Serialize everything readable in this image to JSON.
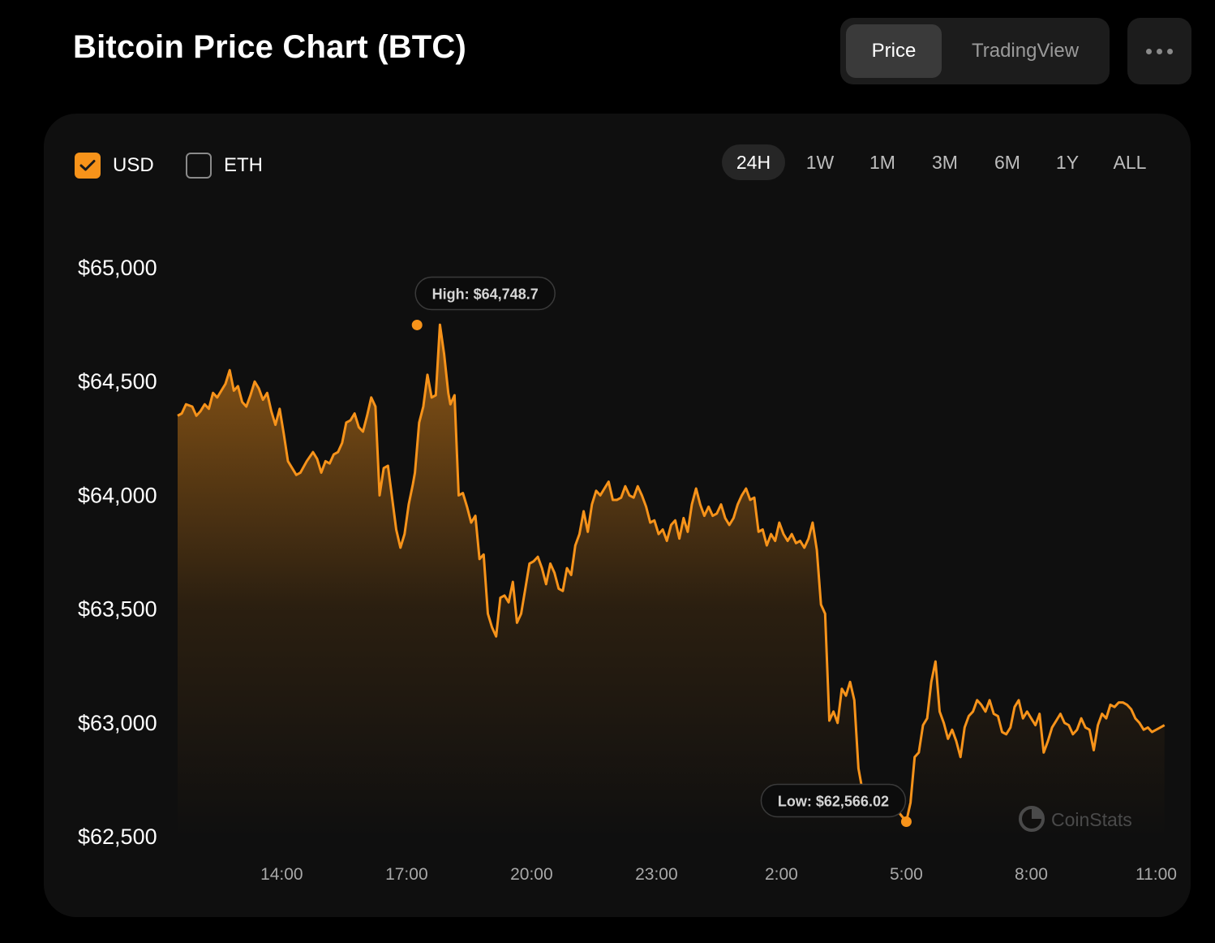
{
  "header": {
    "title": "Bitcoin Price Chart (BTC)",
    "view_tabs": [
      {
        "label": "Price",
        "active": true
      },
      {
        "label": "TradingView",
        "active": false
      }
    ],
    "more_icon": "more-horizontal-icon"
  },
  "currency_options": [
    {
      "label": "USD",
      "checked": true
    },
    {
      "label": "ETH",
      "checked": false
    }
  ],
  "range_tabs": [
    {
      "label": "24H",
      "active": true
    },
    {
      "label": "1W",
      "active": false
    },
    {
      "label": "1M",
      "active": false
    },
    {
      "label": "3M",
      "active": false
    },
    {
      "label": "6M",
      "active": false
    },
    {
      "label": "1Y",
      "active": false
    },
    {
      "label": "ALL",
      "active": false
    }
  ],
  "watermark": "CoinStats",
  "colors": {
    "accent": "#f7931a",
    "background": "#000000",
    "card": "#0f0f0f"
  },
  "chart_data": {
    "type": "area",
    "title": "",
    "xlabel": "",
    "ylabel": "",
    "ylim": [
      62500,
      65000
    ],
    "y_ticks": [
      65000,
      64500,
      64000,
      63500,
      63000,
      62500
    ],
    "y_tick_labels": [
      "$65,000",
      "$64,500",
      "$64,000",
      "$63,500",
      "$63,000",
      "$62,500"
    ],
    "x_range": [
      11.5,
      35.4
    ],
    "x_ticks": [
      14,
      17,
      20,
      23,
      26,
      29,
      32,
      35
    ],
    "x_tick_labels": [
      "14:00",
      "17:00",
      "20:00",
      "23:00",
      "2:00",
      "5:00",
      "8:00",
      "11:00"
    ],
    "high": {
      "label": "High: $64,748.7",
      "x": 17.25,
      "value": 64748.7
    },
    "low": {
      "label": "Low: $62,566.02",
      "x": 29.0,
      "value": 62566.02
    },
    "series": [
      {
        "color": "#f7931a",
        "points": [
          [
            11.5,
            64350
          ],
          [
            11.6,
            64360
          ],
          [
            11.7,
            64400
          ],
          [
            11.85,
            64390
          ],
          [
            11.95,
            64350
          ],
          [
            12.05,
            64370
          ],
          [
            12.15,
            64400
          ],
          [
            12.25,
            64380
          ],
          [
            12.35,
            64450
          ],
          [
            12.45,
            64430
          ],
          [
            12.55,
            64460
          ],
          [
            12.65,
            64490
          ],
          [
            12.75,
            64550
          ],
          [
            12.85,
            64460
          ],
          [
            12.95,
            64480
          ],
          [
            13.05,
            64410
          ],
          [
            13.15,
            64390
          ],
          [
            13.25,
            64440
          ],
          [
            13.35,
            64500
          ],
          [
            13.45,
            64470
          ],
          [
            13.55,
            64420
          ],
          [
            13.65,
            64450
          ],
          [
            13.75,
            64370
          ],
          [
            13.85,
            64310
          ],
          [
            13.95,
            64380
          ],
          [
            14.05,
            64270
          ],
          [
            14.15,
            64150
          ],
          [
            14.25,
            64120
          ],
          [
            14.35,
            64090
          ],
          [
            14.45,
            64100
          ],
          [
            14.6,
            64150
          ],
          [
            14.75,
            64190
          ],
          [
            14.85,
            64160
          ],
          [
            14.95,
            64100
          ],
          [
            15.05,
            64150
          ],
          [
            15.15,
            64140
          ],
          [
            15.25,
            64180
          ],
          [
            15.35,
            64190
          ],
          [
            15.45,
            64230
          ],
          [
            15.55,
            64320
          ],
          [
            15.65,
            64330
          ],
          [
            15.75,
            64360
          ],
          [
            15.85,
            64300
          ],
          [
            15.95,
            64280
          ],
          [
            16.05,
            64350
          ],
          [
            16.15,
            64430
          ],
          [
            16.25,
            64390
          ],
          [
            16.35,
            64000
          ],
          [
            16.45,
            64120
          ],
          [
            16.55,
            64130
          ],
          [
            16.65,
            63990
          ],
          [
            16.75,
            63850
          ],
          [
            16.85,
            63770
          ],
          [
            16.95,
            63830
          ],
          [
            17.05,
            63960
          ],
          [
            17.15,
            64050
          ],
          [
            17.2,
            64100
          ],
          [
            17.3,
            64320
          ],
          [
            17.4,
            64390
          ],
          [
            17.5,
            64530
          ],
          [
            17.6,
            64430
          ],
          [
            17.7,
            64440
          ],
          [
            17.8,
            64750
          ],
          [
            17.9,
            64620
          ],
          [
            18.0,
            64450
          ],
          [
            18.05,
            64400
          ],
          [
            18.15,
            64440
          ],
          [
            18.25,
            64000
          ],
          [
            18.35,
            64010
          ],
          [
            18.45,
            63950
          ],
          [
            18.55,
            63880
          ],
          [
            18.65,
            63910
          ],
          [
            18.75,
            63720
          ],
          [
            18.85,
            63740
          ],
          [
            18.95,
            63480
          ],
          [
            19.05,
            63420
          ],
          [
            19.15,
            63380
          ],
          [
            19.25,
            63550
          ],
          [
            19.35,
            63560
          ],
          [
            19.45,
            63530
          ],
          [
            19.55,
            63620
          ],
          [
            19.65,
            63440
          ],
          [
            19.75,
            63480
          ],
          [
            19.85,
            63590
          ],
          [
            19.95,
            63700
          ],
          [
            20.05,
            63710
          ],
          [
            20.15,
            63730
          ],
          [
            20.25,
            63680
          ],
          [
            20.35,
            63610
          ],
          [
            20.45,
            63700
          ],
          [
            20.55,
            63660
          ],
          [
            20.65,
            63590
          ],
          [
            20.75,
            63580
          ],
          [
            20.85,
            63680
          ],
          [
            20.95,
            63650
          ],
          [
            21.05,
            63780
          ],
          [
            21.15,
            63830
          ],
          [
            21.25,
            63930
          ],
          [
            21.35,
            63840
          ],
          [
            21.45,
            63960
          ],
          [
            21.55,
            64020
          ],
          [
            21.65,
            64000
          ],
          [
            21.75,
            64030
          ],
          [
            21.85,
            64060
          ],
          [
            21.95,
            63980
          ],
          [
            22.05,
            63980
          ],
          [
            22.15,
            63990
          ],
          [
            22.25,
            64040
          ],
          [
            22.35,
            64000
          ],
          [
            22.45,
            63990
          ],
          [
            22.55,
            64040
          ],
          [
            22.65,
            64000
          ],
          [
            22.75,
            63950
          ],
          [
            22.85,
            63880
          ],
          [
            22.95,
            63890
          ],
          [
            23.05,
            63830
          ],
          [
            23.15,
            63850
          ],
          [
            23.25,
            63800
          ],
          [
            23.35,
            63870
          ],
          [
            23.45,
            63890
          ],
          [
            23.55,
            63810
          ],
          [
            23.65,
            63900
          ],
          [
            23.75,
            63840
          ],
          [
            23.85,
            63960
          ],
          [
            23.95,
            64030
          ],
          [
            24.05,
            63960
          ],
          [
            24.15,
            63910
          ],
          [
            24.25,
            63950
          ],
          [
            24.35,
            63910
          ],
          [
            24.45,
            63920
          ],
          [
            24.55,
            63960
          ],
          [
            24.65,
            63900
          ],
          [
            24.75,
            63870
          ],
          [
            24.85,
            63900
          ],
          [
            24.95,
            63960
          ],
          [
            25.05,
            64000
          ],
          [
            25.15,
            64030
          ],
          [
            25.25,
            63980
          ],
          [
            25.35,
            63990
          ],
          [
            25.45,
            63840
          ],
          [
            25.55,
            63850
          ],
          [
            25.65,
            63780
          ],
          [
            25.75,
            63830
          ],
          [
            25.85,
            63800
          ],
          [
            25.95,
            63880
          ],
          [
            26.05,
            63830
          ],
          [
            26.15,
            63800
          ],
          [
            26.25,
            63830
          ],
          [
            26.35,
            63790
          ],
          [
            26.45,
            63800
          ],
          [
            26.55,
            63770
          ],
          [
            26.65,
            63810
          ],
          [
            26.75,
            63880
          ],
          [
            26.85,
            63760
          ],
          [
            26.95,
            63520
          ],
          [
            27.05,
            63480
          ],
          [
            27.15,
            63010
          ],
          [
            27.25,
            63050
          ],
          [
            27.35,
            63000
          ],
          [
            27.45,
            63150
          ],
          [
            27.55,
            63120
          ],
          [
            27.65,
            63180
          ],
          [
            27.75,
            63100
          ],
          [
            27.85,
            62800
          ],
          [
            27.95,
            62700
          ],
          [
            28.05,
            62620
          ],
          [
            28.15,
            62720
          ],
          [
            28.25,
            62640
          ],
          [
            28.35,
            62680
          ],
          [
            28.45,
            62600
          ],
          [
            28.55,
            62640
          ],
          [
            28.65,
            62620
          ],
          [
            28.75,
            62640
          ],
          [
            28.85,
            62600
          ],
          [
            29.0,
            62566
          ],
          [
            29.1,
            62650
          ],
          [
            29.2,
            62850
          ],
          [
            29.3,
            62870
          ],
          [
            29.4,
            62990
          ],
          [
            29.5,
            63020
          ],
          [
            29.6,
            63180
          ],
          [
            29.7,
            63270
          ],
          [
            29.8,
            63050
          ],
          [
            29.9,
            63000
          ],
          [
            30.0,
            62930
          ],
          [
            30.1,
            62970
          ],
          [
            30.2,
            62920
          ],
          [
            30.3,
            62850
          ],
          [
            30.4,
            62980
          ],
          [
            30.5,
            63030
          ],
          [
            30.6,
            63050
          ],
          [
            30.7,
            63100
          ],
          [
            30.8,
            63080
          ],
          [
            30.9,
            63050
          ],
          [
            31.0,
            63100
          ],
          [
            31.1,
            63040
          ],
          [
            31.2,
            63030
          ],
          [
            31.3,
            62960
          ],
          [
            31.4,
            62950
          ],
          [
            31.5,
            62980
          ],
          [
            31.6,
            63070
          ],
          [
            31.7,
            63100
          ],
          [
            31.8,
            63020
          ],
          [
            31.9,
            63050
          ],
          [
            32.0,
            63020
          ],
          [
            32.1,
            62990
          ],
          [
            32.2,
            63040
          ],
          [
            32.3,
            62870
          ],
          [
            32.4,
            62920
          ],
          [
            32.5,
            62980
          ],
          [
            32.6,
            63010
          ],
          [
            32.7,
            63040
          ],
          [
            32.8,
            63000
          ],
          [
            32.9,
            62990
          ],
          [
            33.0,
            62950
          ],
          [
            33.1,
            62970
          ],
          [
            33.2,
            63020
          ],
          [
            33.3,
            62980
          ],
          [
            33.4,
            62970
          ],
          [
            33.5,
            62880
          ],
          [
            33.6,
            62990
          ],
          [
            33.7,
            63040
          ],
          [
            33.8,
            63020
          ],
          [
            33.9,
            63080
          ],
          [
            34.0,
            63070
          ],
          [
            34.1,
            63090
          ],
          [
            34.2,
            63090
          ],
          [
            34.3,
            63080
          ],
          [
            34.4,
            63060
          ],
          [
            34.5,
            63020
          ],
          [
            34.6,
            63000
          ],
          [
            34.7,
            62970
          ],
          [
            34.8,
            62980
          ],
          [
            34.9,
            62960
          ],
          [
            35.0,
            62970
          ],
          [
            35.1,
            62980
          ],
          [
            35.2,
            62990
          ]
        ]
      }
    ]
  }
}
